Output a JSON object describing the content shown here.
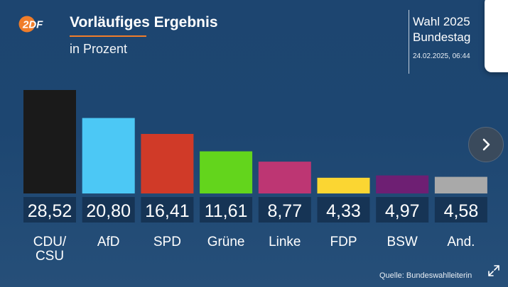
{
  "header": {
    "logo_text": "2DF",
    "title": "Vorläufiges Ergebnis",
    "subtitle": "in Prozent",
    "election_title_line1": "Wahl 2025",
    "election_title_line2": "Bundestag",
    "timestamp": "24.02.2025, 06:44"
  },
  "chart_data": {
    "type": "bar",
    "title": "Vorläufiges Ergebnis",
    "subtitle": "in Prozent",
    "categories": [
      "CDU/\nCSU",
      "AfD",
      "SPD",
      "Grüne",
      "Linke",
      "FDP",
      "BSW",
      "And."
    ],
    "values": [
      28.52,
      20.8,
      16.41,
      11.61,
      8.77,
      4.33,
      4.97,
      4.58
    ],
    "value_labels": [
      "28,52",
      "20,80",
      "16,41",
      "11,61",
      "8,77",
      "4,33",
      "4,97",
      "4,58"
    ],
    "colors": [
      "#1a1a1a",
      "#4cc8f5",
      "#d03a28",
      "#63d51c",
      "#bd3673",
      "#fbd632",
      "#6e1f73",
      "#a9a9a9"
    ],
    "ylim": [
      0,
      28.52
    ],
    "grid": false,
    "legend": "none"
  },
  "footer": {
    "source": "Quelle: Bundeswahlleiterin"
  },
  "controls": {
    "next_icon": "chevron-right-icon",
    "expand_icon": "expand-icon"
  },
  "colors": {
    "accent": "#f07d2a",
    "value_box": "#163455",
    "background": "#1d4570"
  }
}
